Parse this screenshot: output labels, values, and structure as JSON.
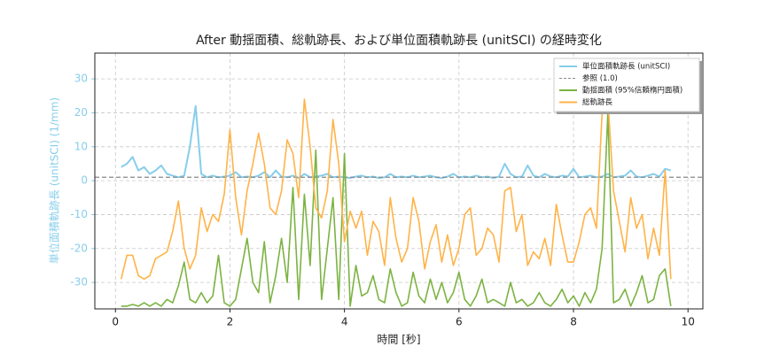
{
  "chart_data": {
    "type": "line",
    "title": "After 動揺面積、総軌跡長、および単位面積軌跡長 (unitSCI) の経時変化",
    "x_label": "時間 [秒]",
    "y_label": "単位面積軌跡長 (unitSCI) (1/mm)",
    "y_label_color": "#87ceeb",
    "x": [
      0.1,
      0.2,
      0.3,
      0.4,
      0.5,
      0.6,
      0.7,
      0.8,
      0.9,
      1.0,
      1.1,
      1.2,
      1.3,
      1.4,
      1.5,
      1.6,
      1.7,
      1.8,
      1.9,
      2.0,
      2.1,
      2.2,
      2.3,
      2.4,
      2.5,
      2.6,
      2.7,
      2.8,
      2.9,
      3.0,
      3.1,
      3.2,
      3.3,
      3.4,
      3.5,
      3.6,
      3.7,
      3.8,
      3.9,
      4.0,
      4.1,
      4.2,
      4.3,
      4.4,
      4.5,
      4.6,
      4.7,
      4.8,
      4.9,
      5.0,
      5.1,
      5.2,
      5.3,
      5.4,
      5.5,
      5.6,
      5.7,
      5.8,
      5.9,
      6.0,
      6.1,
      6.2,
      6.3,
      6.4,
      6.5,
      6.6,
      6.7,
      6.8,
      6.9,
      7.0,
      7.1,
      7.2,
      7.3,
      7.4,
      7.5,
      7.6,
      7.7,
      7.8,
      7.9,
      8.0,
      8.1,
      8.2,
      8.3,
      8.4,
      8.5,
      8.6,
      8.7,
      8.8,
      8.9,
      9.0,
      9.1,
      9.2,
      9.3,
      9.4,
      9.5,
      9.6,
      9.7
    ],
    "series": [
      {
        "name": "単位面積軌跡長 (unitSCI)",
        "color": "#87ceeb",
        "width": 2,
        "values": [
          4,
          5,
          7,
          3,
          4,
          2,
          3,
          4.5,
          2,
          1.5,
          1,
          1.5,
          10,
          22,
          2,
          1,
          1.5,
          1,
          1.2,
          1.5,
          2.5,
          1,
          1.2,
          1,
          1.5,
          2.5,
          1,
          3,
          1.2,
          1,
          1.5,
          0.8,
          2,
          1,
          1.2,
          1.5,
          2,
          1,
          1.2,
          1,
          0.8,
          1.2,
          1.5,
          1,
          1.2,
          0.8,
          1,
          2,
          1,
          1.2,
          1,
          1.5,
          1,
          1.2,
          1.5,
          1,
          0.8,
          1.2,
          2,
          1,
          1.2,
          1,
          1.5,
          1,
          1.2,
          0.8,
          1.2,
          5,
          2,
          1,
          1.2,
          4.5,
          1.5,
          1,
          2,
          1.2,
          1,
          1.5,
          1.2,
          3.5,
          1,
          1.2,
          1.5,
          1,
          1.2,
          2,
          1,
          1.2,
          1.5,
          3,
          1.2,
          1,
          1.5,
          2,
          1.2,
          3.5,
          3
        ]
      },
      {
        "name": "動揺面積 (95%信頼楕円面積)",
        "color": "#7cb342",
        "width": 1.6,
        "values": [
          -37,
          -37,
          -36.5,
          -37,
          -36,
          -37,
          -36,
          -37,
          -35,
          -36,
          -31,
          -24,
          -35,
          -36,
          -33,
          -36,
          -34,
          -22,
          -36,
          -37,
          -35,
          -26,
          -17,
          -30,
          -33,
          -18,
          -36,
          -28,
          -17,
          -30,
          -2,
          -35,
          -4,
          -25,
          9,
          -35,
          -20,
          -5,
          -35,
          8,
          -37,
          -25,
          -34,
          -33,
          -28,
          -35,
          -36,
          -26,
          -33,
          -37,
          -36,
          -27,
          -34,
          -36,
          -29,
          -35,
          -30,
          -36,
          -33,
          -27,
          -35,
          -37,
          -34,
          -29,
          -36,
          -35,
          -36,
          -37,
          -30,
          -36,
          -35,
          -37,
          -36,
          -33,
          -36,
          -37,
          -35,
          -32,
          -36,
          -34,
          -37,
          -33,
          -36,
          -32,
          -20,
          20,
          -36,
          -35,
          -32,
          -37,
          -33,
          -28,
          -36,
          -35,
          -28,
          -26,
          -37
        ]
      },
      {
        "name": "総軌跡長",
        "color": "#ffb347",
        "width": 1.6,
        "values": [
          -29,
          -22,
          -22,
          -28,
          -29,
          -28,
          -23,
          -22,
          -21,
          -15,
          -6,
          -20,
          -26,
          -22,
          -8,
          -15,
          -10,
          -12,
          -4,
          15,
          -5,
          -16,
          -3,
          5,
          14,
          5,
          -8,
          -10,
          -3,
          12,
          8,
          -5,
          24,
          10,
          -8,
          -11,
          -3,
          18,
          5,
          -18,
          -9,
          -14,
          -9,
          -22,
          -12,
          -15,
          -25,
          -5,
          -17,
          -24,
          -20,
          -5,
          -12,
          -26,
          -18,
          -13,
          -24,
          -16,
          -25,
          -20,
          -10,
          -8,
          -22,
          -20,
          -14,
          -16,
          -24,
          -3,
          -2,
          -15,
          -10,
          -25,
          -21,
          -23,
          -17,
          -25,
          -7,
          -16,
          -24,
          -24,
          -18,
          -10,
          -8,
          -14,
          20,
          24,
          -3,
          -12,
          -21,
          -5,
          -14,
          -10,
          -23,
          -14,
          -22,
          3,
          -29
        ]
      }
    ],
    "reference": {
      "name": "参照 (1.0)",
      "value": 1.0,
      "color": "#888888"
    },
    "legend_order": [
      "series.0",
      "reference",
      "series.1",
      "series.2"
    ],
    "xlim": [
      -0.36,
      10.26
    ],
    "ylim": [
      -37.8,
      37.6
    ],
    "xticks": [
      0,
      2,
      4,
      6,
      8,
      10
    ],
    "yticks": [
      -30,
      -20,
      -10,
      0,
      10,
      20,
      30
    ],
    "grid": true,
    "legend": "upper right"
  }
}
